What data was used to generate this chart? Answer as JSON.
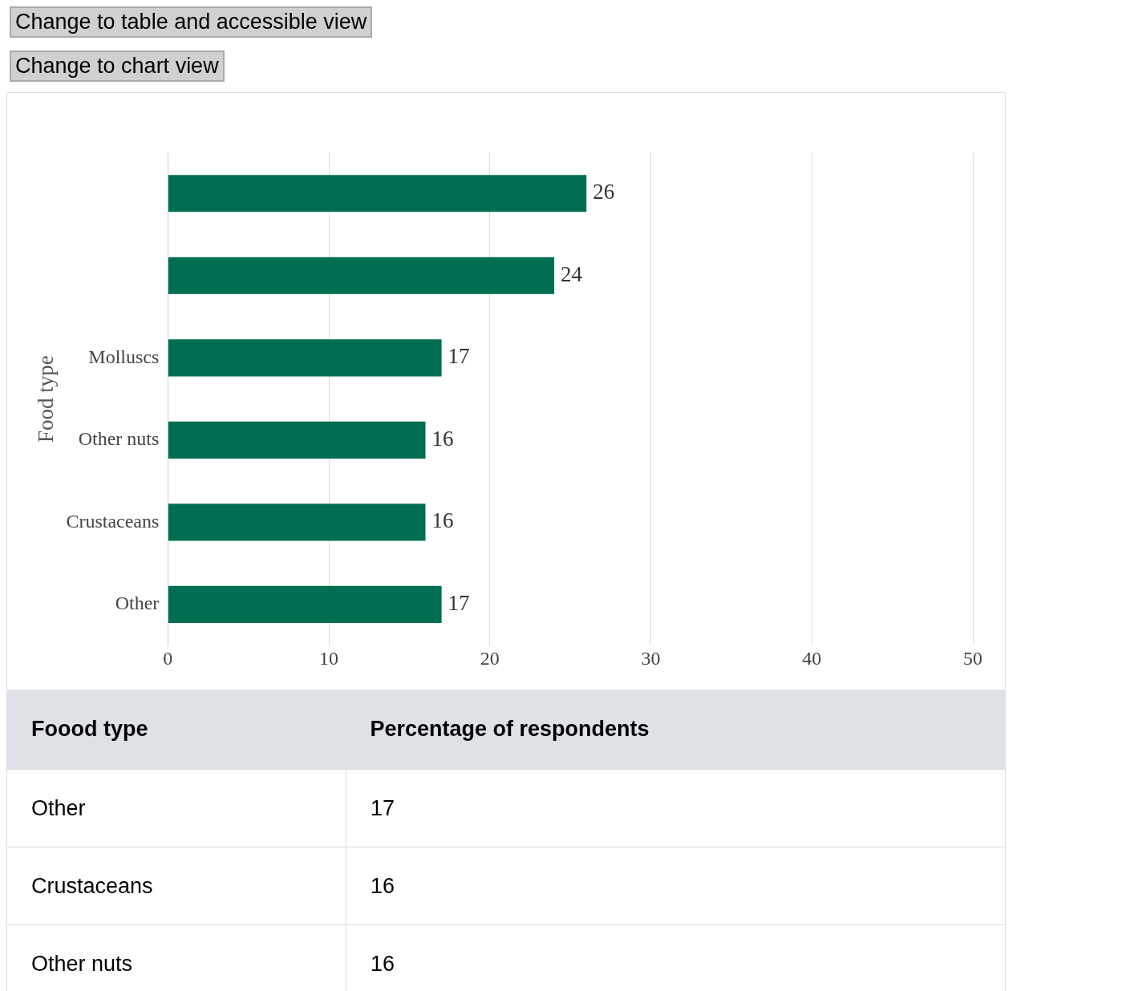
{
  "chart_data": {
    "type": "bar",
    "orientation": "horizontal",
    "ylabel": "Food type",
    "categories": [
      null,
      null,
      "Molluscs",
      "Other nuts",
      "Crustaceans",
      "Other"
    ],
    "values": [
      26,
      24,
      17,
      16,
      16,
      17
    ],
    "color": "#006f51",
    "xlim": [
      0,
      50
    ],
    "xticks": [
      0,
      10,
      20,
      30,
      40,
      50
    ],
    "value_labels": [
      "26",
      "24",
      "17",
      "16",
      "16",
      "17"
    ],
    "grid": "x",
    "legend": false,
    "annotations": [
      "Change to table and accessible view",
      "Change to chart view",
      "Foood type",
      "Percentage of respondents"
    ]
  }
}
